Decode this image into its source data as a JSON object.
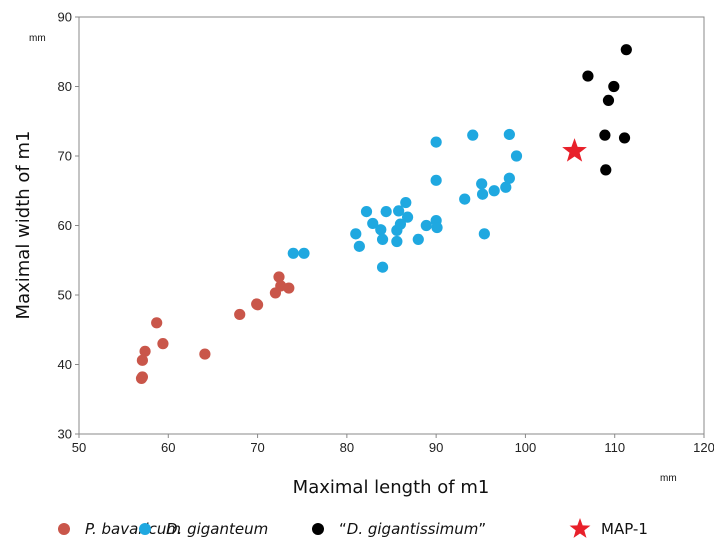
{
  "chart_data": {
    "type": "scatter",
    "xlabel": "Maximal length of m1",
    "ylabel": "Maximal width of m1",
    "x_unit": "mm",
    "y_unit": "mm",
    "xlim": [
      50,
      120
    ],
    "ylim": [
      30,
      90
    ],
    "x_ticks": [
      50,
      60,
      70,
      80,
      90,
      100,
      110,
      120
    ],
    "y_ticks": [
      30,
      40,
      50,
      60,
      70,
      80,
      90
    ],
    "grid": false,
    "legend_position": "bottom",
    "series": [
      {
        "name": "P. bavaricum",
        "legend_prefix": "",
        "legend_suffix": "",
        "legend_italic": true,
        "marker": "circle",
        "color": "#c9564a",
        "points": [
          [
            57.0,
            38.0
          ],
          [
            57.1,
            38.2
          ],
          [
            57.1,
            40.6
          ],
          [
            57.4,
            41.9
          ],
          [
            58.7,
            46.0
          ],
          [
            59.4,
            43.0
          ],
          [
            64.1,
            41.5
          ],
          [
            68.0,
            47.2
          ],
          [
            69.9,
            48.7
          ],
          [
            70.0,
            48.6
          ],
          [
            72.0,
            50.3
          ],
          [
            72.4,
            52.6
          ],
          [
            72.6,
            51.3
          ],
          [
            73.5,
            51.0
          ]
        ]
      },
      {
        "name": "D. giganteum",
        "legend_prefix": "",
        "legend_suffix": "",
        "legend_italic": true,
        "marker": "circle",
        "color": "#1fa8e0",
        "points": [
          [
            74.0,
            56.0
          ],
          [
            75.2,
            56.0
          ],
          [
            81.0,
            58.8
          ],
          [
            81.4,
            57.0
          ],
          [
            82.2,
            62.0
          ],
          [
            82.9,
            60.3
          ],
          [
            83.8,
            59.4
          ],
          [
            84.0,
            54.0
          ],
          [
            84.0,
            58.0
          ],
          [
            84.4,
            62.0
          ],
          [
            85.6,
            57.7
          ],
          [
            85.6,
            59.3
          ],
          [
            85.8,
            62.1
          ],
          [
            86.0,
            60.2
          ],
          [
            86.6,
            63.3
          ],
          [
            86.8,
            61.2
          ],
          [
            88.0,
            58.0
          ],
          [
            88.9,
            60.0
          ],
          [
            90.0,
            72.0
          ],
          [
            90.0,
            66.5
          ],
          [
            90.0,
            60.7
          ],
          [
            90.1,
            59.7
          ],
          [
            93.2,
            63.8
          ],
          [
            94.1,
            73.0
          ],
          [
            95.1,
            66.0
          ],
          [
            95.2,
            64.5
          ],
          [
            95.4,
            58.8
          ],
          [
            96.5,
            65.0
          ],
          [
            97.8,
            65.5
          ],
          [
            98.2,
            73.1
          ],
          [
            98.2,
            66.8
          ],
          [
            99.0,
            70.0
          ]
        ]
      },
      {
        "name": "D. gigantissimum",
        "legend_prefix": "“",
        "legend_suffix": "”",
        "legend_italic": true,
        "marker": "circle",
        "color": "#000000",
        "points": [
          [
            107.0,
            81.5
          ],
          [
            108.9,
            73.0
          ],
          [
            109.0,
            68.0
          ],
          [
            109.3,
            78.0
          ],
          [
            109.9,
            80.0
          ],
          [
            111.1,
            72.6
          ],
          [
            111.3,
            85.3
          ]
        ]
      },
      {
        "name": "MAP-1",
        "legend_prefix": "",
        "legend_suffix": "",
        "legend_italic": false,
        "marker": "star",
        "color": "#e8202a",
        "points": [
          [
            105.5,
            70.7
          ]
        ]
      }
    ]
  }
}
